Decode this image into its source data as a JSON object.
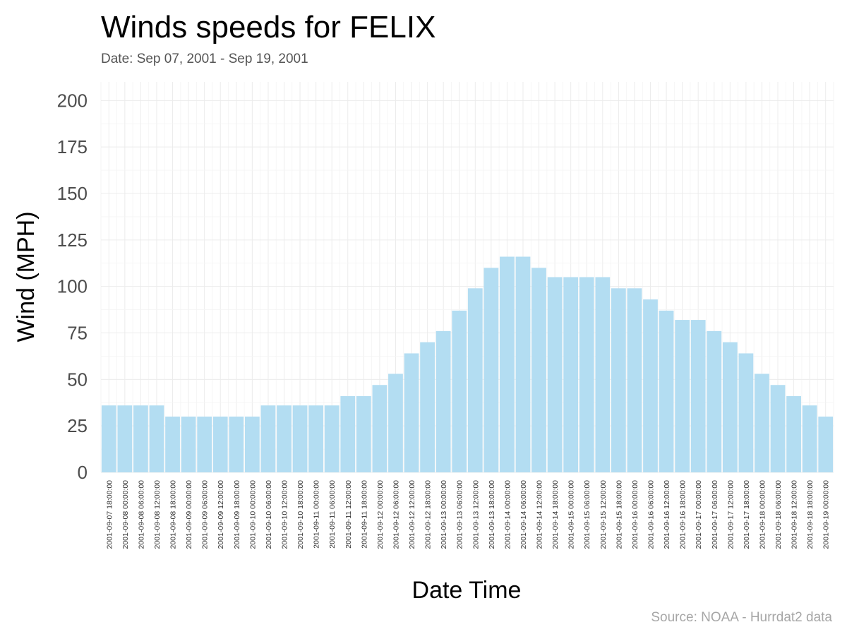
{
  "chart_data": {
    "type": "bar",
    "title": "Winds speeds for FELIX",
    "subtitle": "Date:  Sep 07, 2001 - Sep 19, 2001",
    "xlabel": "Date Time",
    "ylabel": "Wind (MPH)",
    "caption": "Source: NOAA - Hurrdat2 data",
    "ylim": [
      0,
      210
    ],
    "yticks": [
      0,
      25,
      50,
      75,
      100,
      125,
      150,
      175,
      200
    ],
    "grid": true,
    "bar_color": "#b3ddf2",
    "categories": [
      "2001-09-07 18:00:00",
      "2001-09-08 00:00:00",
      "2001-09-08 06:00:00",
      "2001-09-08 12:00:00",
      "2001-09-08 18:00:00",
      "2001-09-09 00:00:00",
      "2001-09-09 06:00:00",
      "2001-09-09 12:00:00",
      "2001-09-09 18:00:00",
      "2001-09-10 00:00:00",
      "2001-09-10 06:00:00",
      "2001-09-10 12:00:00",
      "2001-09-10 18:00:00",
      "2001-09-11 00:00:00",
      "2001-09-11 06:00:00",
      "2001-09-11 12:00:00",
      "2001-09-11 18:00:00",
      "2001-09-12 00:00:00",
      "2001-09-12 06:00:00",
      "2001-09-12 12:00:00",
      "2001-09-12 18:00:00",
      "2001-09-13 00:00:00",
      "2001-09-13 06:00:00",
      "2001-09-13 12:00:00",
      "2001-09-13 18:00:00",
      "2001-09-14 00:00:00",
      "2001-09-14 06:00:00",
      "2001-09-14 12:00:00",
      "2001-09-14 18:00:00",
      "2001-09-15 00:00:00",
      "2001-09-15 06:00:00",
      "2001-09-15 12:00:00",
      "2001-09-15 18:00:00",
      "2001-09-16 00:00:00",
      "2001-09-16 06:00:00",
      "2001-09-16 12:00:00",
      "2001-09-16 18:00:00",
      "2001-09-17 00:00:00",
      "2001-09-17 06:00:00",
      "2001-09-17 12:00:00",
      "2001-09-17 18:00:00",
      "2001-09-18 00:00:00",
      "2001-09-18 06:00:00",
      "2001-09-18 12:00:00",
      "2001-09-18 18:00:00",
      "2001-09-19 00:00:00"
    ],
    "values": [
      36,
      36,
      36,
      36,
      30,
      30,
      30,
      30,
      30,
      30,
      36,
      36,
      36,
      36,
      36,
      41,
      41,
      47,
      53,
      64,
      70,
      76,
      87,
      99,
      110,
      116,
      116,
      110,
      105,
      105,
      105,
      105,
      99,
      99,
      93,
      87,
      82,
      82,
      76,
      70,
      64,
      53,
      47,
      41,
      36,
      30
    ]
  }
}
